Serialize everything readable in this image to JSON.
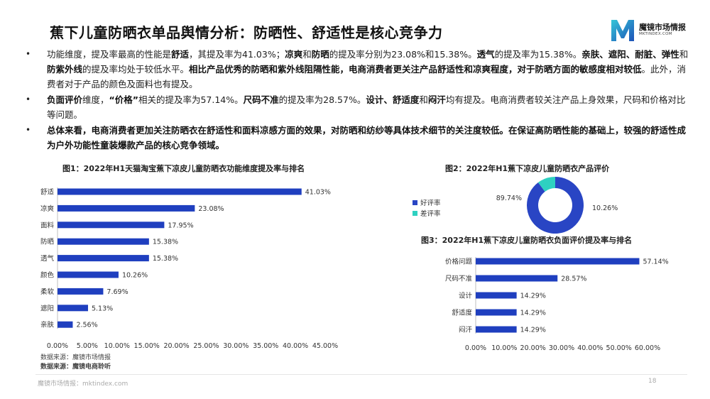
{
  "header": {
    "title": "蕉下儿童防晒衣单品舆情分析：防晒性、舒适性是核心竞争力",
    "logo_cn": "魔镜市场情报",
    "logo_en": "MKTINDEX.COM"
  },
  "bullets": [
    [
      {
        "t": "功能维度，提及率最高的性能是",
        "b": false
      },
      {
        "t": "舒适",
        "b": true
      },
      {
        "t": "，其提及率为41.03%；",
        "b": false
      },
      {
        "t": "凉爽",
        "b": true
      },
      {
        "t": "和",
        "b": false
      },
      {
        "t": "防晒",
        "b": true
      },
      {
        "t": "的提及率分别为23.08%和15.38%。",
        "b": false
      },
      {
        "t": "透气",
        "b": true
      },
      {
        "t": "的提及率为15.38%。",
        "b": false
      },
      {
        "t": "亲肤、遮阳、耐脏、弹性",
        "b": true
      },
      {
        "t": "和",
        "b": false
      },
      {
        "t": "防紫外线",
        "b": true
      },
      {
        "t": "的提及率均处于较低水平。",
        "b": false
      },
      {
        "t": "相比产品优秀的防晒和紫外线阻隔性能，电商消费者更关注产品舒适性和凉爽程度，对于防晒方面的敏感度相对较低",
        "b": true
      },
      {
        "t": "。此外，消费者对于产品的颜色及面料也有提及。",
        "b": false
      }
    ],
    [
      {
        "t": "负面评价",
        "b": true
      },
      {
        "t": "维度，",
        "b": false
      },
      {
        "t": "“价格”",
        "b": true
      },
      {
        "t": "相关的提及率为57.14%。",
        "b": false
      },
      {
        "t": "尺码不准",
        "b": true
      },
      {
        "t": "的提及率为28.57%。",
        "b": false
      },
      {
        "t": "设计、舒适度",
        "b": true
      },
      {
        "t": "和",
        "b": false
      },
      {
        "t": "闷汗",
        "b": true
      },
      {
        "t": "均有提及。电商消费者较关注产品上身效果，尺码和价格对比等问题。",
        "b": false
      }
    ],
    [
      {
        "t": "总体来看，电商消费者更加关注防晒衣在舒适性和面料凉感方面的效果，对防晒和纺纱等具体技术细节的关注度较低。在保证高防晒性能的基础上，较强的舒适性成为户外功能性童装爆款产品的核心竞争领域。",
        "b": true
      }
    ]
  ],
  "colors": {
    "bar": "#1f3fbf",
    "good": "#2945c4",
    "bad": "#2ed1c1"
  },
  "chart_data": [
    {
      "type": "bar",
      "orientation": "horizontal",
      "title": "图1：2022年H1天猫淘宝蕉下凉皮儿童防晒衣功能维度提及率与排名",
      "categories": [
        "舒适",
        "凉爽",
        "面料",
        "防晒",
        "透气",
        "颜色",
        "柔软",
        "遮阳",
        "亲肤"
      ],
      "values": [
        41.03,
        23.08,
        17.95,
        15.38,
        15.38,
        10.26,
        7.69,
        5.13,
        2.56
      ],
      "value_labels": [
        "41.03%",
        "23.08%",
        "17.95%",
        "15.38%",
        "15.38%",
        "10.26%",
        "7.69%",
        "5.13%",
        "2.56%"
      ],
      "xlim": [
        0,
        45
      ],
      "xticks": [
        "0.00%",
        "5.00%",
        "10.00%",
        "15.00%",
        "20.00%",
        "25.00%",
        "30.00%",
        "35.00%",
        "40.00%",
        "45.00%"
      ],
      "grid": false
    },
    {
      "type": "pie",
      "donut": true,
      "title": "图2：2022年H1蕉下凉皮儿童防晒衣产品评价",
      "labels": [
        "好评率",
        "差评率"
      ],
      "values": [
        89.74,
        10.26
      ],
      "value_labels": [
        "89.74%",
        "10.26%"
      ],
      "legend": "left"
    },
    {
      "type": "bar",
      "orientation": "horizontal",
      "title": "图3：2022年H1蕉下凉皮儿童防晒衣负面评价提及率与排名",
      "categories": [
        "价格问题",
        "尺码不准",
        "设计",
        "舒适度",
        "闷汗"
      ],
      "values": [
        57.14,
        28.57,
        14.29,
        14.29,
        14.29
      ],
      "value_labels": [
        "57.14%",
        "28.57%",
        "14.29%",
        "14.29%",
        "14.29%"
      ],
      "xlim": [
        0,
        60
      ],
      "xticks": [
        "0.00%",
        "10.00%",
        "20.00%",
        "30.00%",
        "40.00%",
        "50.00%",
        "60.00%"
      ],
      "grid": false
    }
  ],
  "sources": [
    "数据来源：魔镜市场情报",
    "数据来源：魔镜电商聆听"
  ],
  "footer": {
    "text": "魔镜市场情报：mktindex.com",
    "page": "18"
  }
}
